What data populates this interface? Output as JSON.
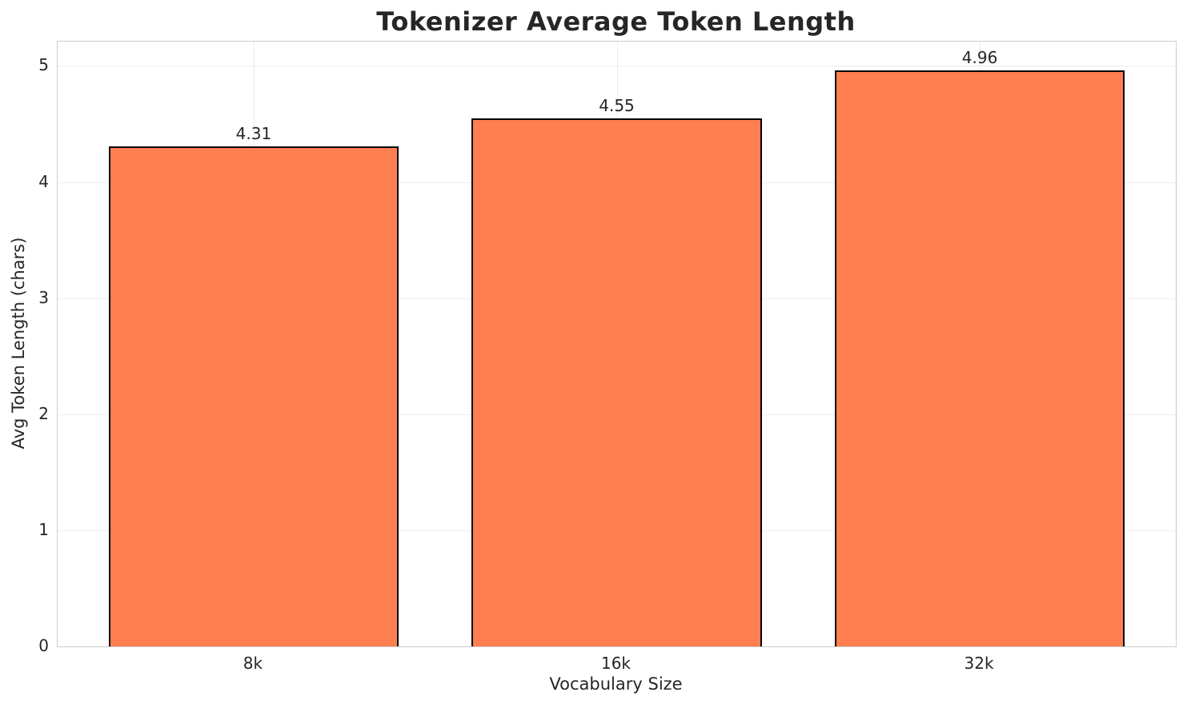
{
  "chart_data": {
    "type": "bar",
    "title": "Tokenizer Average Token Length",
    "xlabel": "Vocabulary Size",
    "ylabel": "Avg Token Length (chars)",
    "categories": [
      "8k",
      "16k",
      "32k"
    ],
    "values": [
      4.31,
      4.55,
      4.96
    ],
    "value_labels": [
      "4.31",
      "4.55",
      "4.96"
    ],
    "yticks": [
      0,
      1,
      2,
      3,
      4,
      5
    ],
    "ytick_labels": [
      "0",
      "1",
      "2",
      "3",
      "4",
      "5"
    ],
    "ylim": [
      0,
      5.21
    ],
    "grid": true,
    "legend": "none",
    "colors": {
      "bar_fill": "#FF7F50",
      "bar_edge": "#000000",
      "grid_line": "#ececec",
      "spine": "#cccccc",
      "text": "#262626",
      "background": "#ffffff"
    }
  }
}
